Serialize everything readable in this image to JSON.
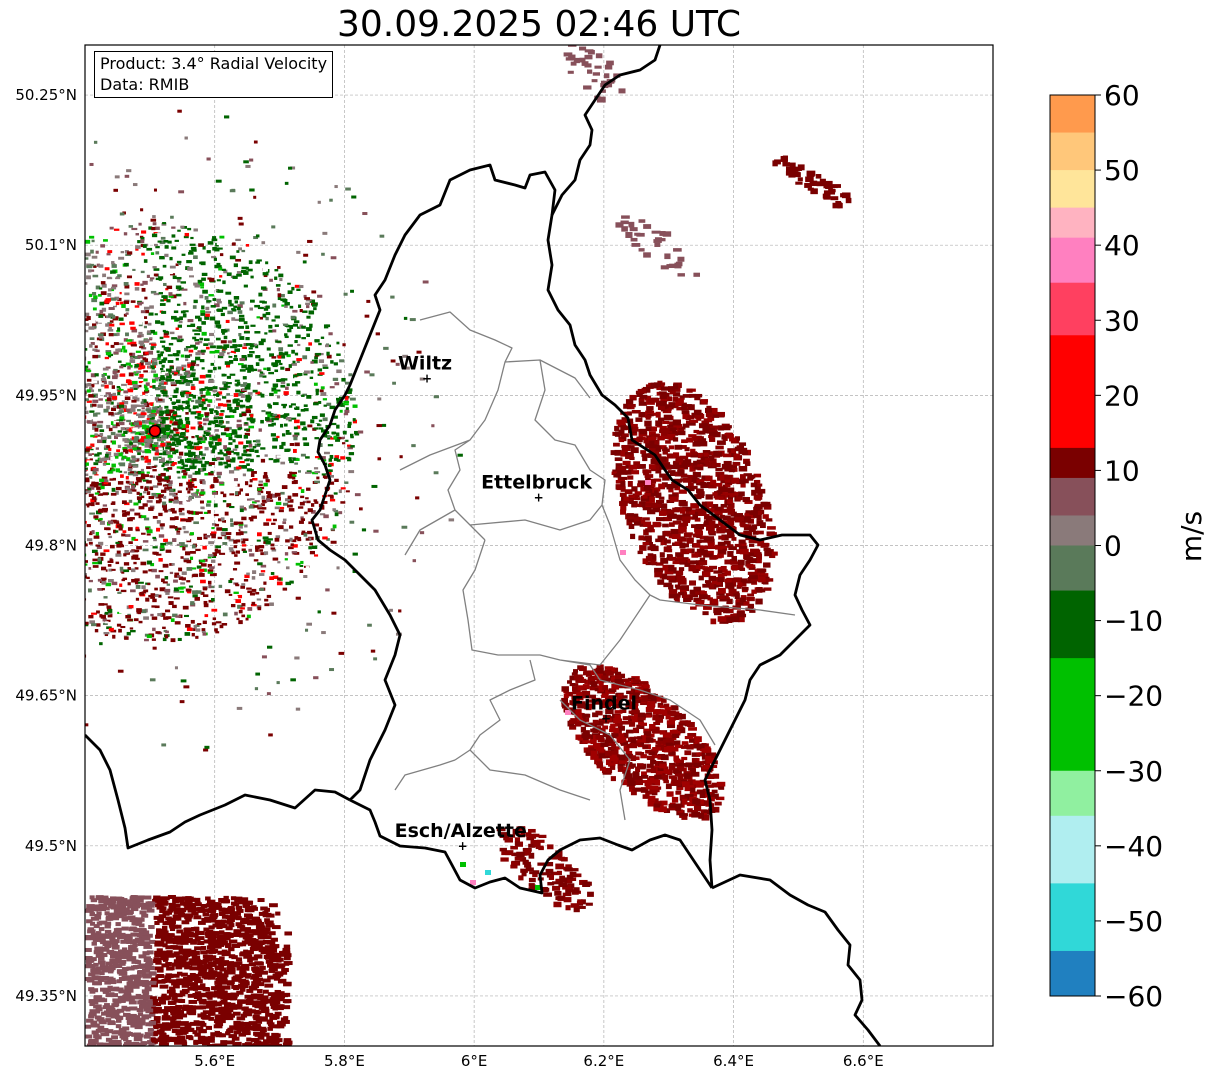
{
  "title": "30.09.2025 02:46 UTC",
  "info": {
    "product": "Product: 3.4° Radial Velocity",
    "data": "Data: RMIB"
  },
  "axes": {
    "lon_ticks": [
      "5.6°E",
      "5.8°E",
      "6°E",
      "6.2°E",
      "6.4°E",
      "6.6°E"
    ],
    "lat_ticks": [
      "50.25°N",
      "50.1°N",
      "49.95°N",
      "49.8°N",
      "49.65°N",
      "49.5°N",
      "49.35°N"
    ],
    "lon_range": [
      5.4,
      6.8
    ],
    "lat_range": [
      49.3,
      50.3
    ]
  },
  "cities": [
    {
      "name": "Wiltz",
      "lon": 5.932,
      "lat": 49.967
    },
    {
      "name": "Ettelbruck",
      "lon": 6.104,
      "lat": 49.848
    },
    {
      "name": "Findel",
      "lon": 6.208,
      "lat": 49.627
    },
    {
      "name": "Esch/Alzette",
      "lon": 5.987,
      "lat": 49.5
    }
  ],
  "radar_site": {
    "lon": 5.505,
    "lat": 49.914
  },
  "colorbar": {
    "unit": "m/s",
    "ticks": [
      "60",
      "50",
      "40",
      "30",
      "20",
      "10",
      "0",
      "−10",
      "−20",
      "−30",
      "−40",
      "−50",
      "−60"
    ],
    "colors": {
      "pos_high": "#ff9a4d",
      "orange_light": "#ffc77a",
      "yellow": "#ffe59a",
      "pink_light": "#ffb3c1",
      "pink": "#ff80c0",
      "red_pink": "#ff4060",
      "red": "#ff0000",
      "dark_red": "#7a0000",
      "brown": "#87505a",
      "gray": "#8a7a7a",
      "gray_green": "#5a7a5a",
      "dark_green": "#006400",
      "green": "#00c000",
      "light_green": "#90f0a0",
      "light_cyan": "#b0eef0",
      "cyan": "#30d8d8",
      "blue": "#2080c0"
    }
  }
}
